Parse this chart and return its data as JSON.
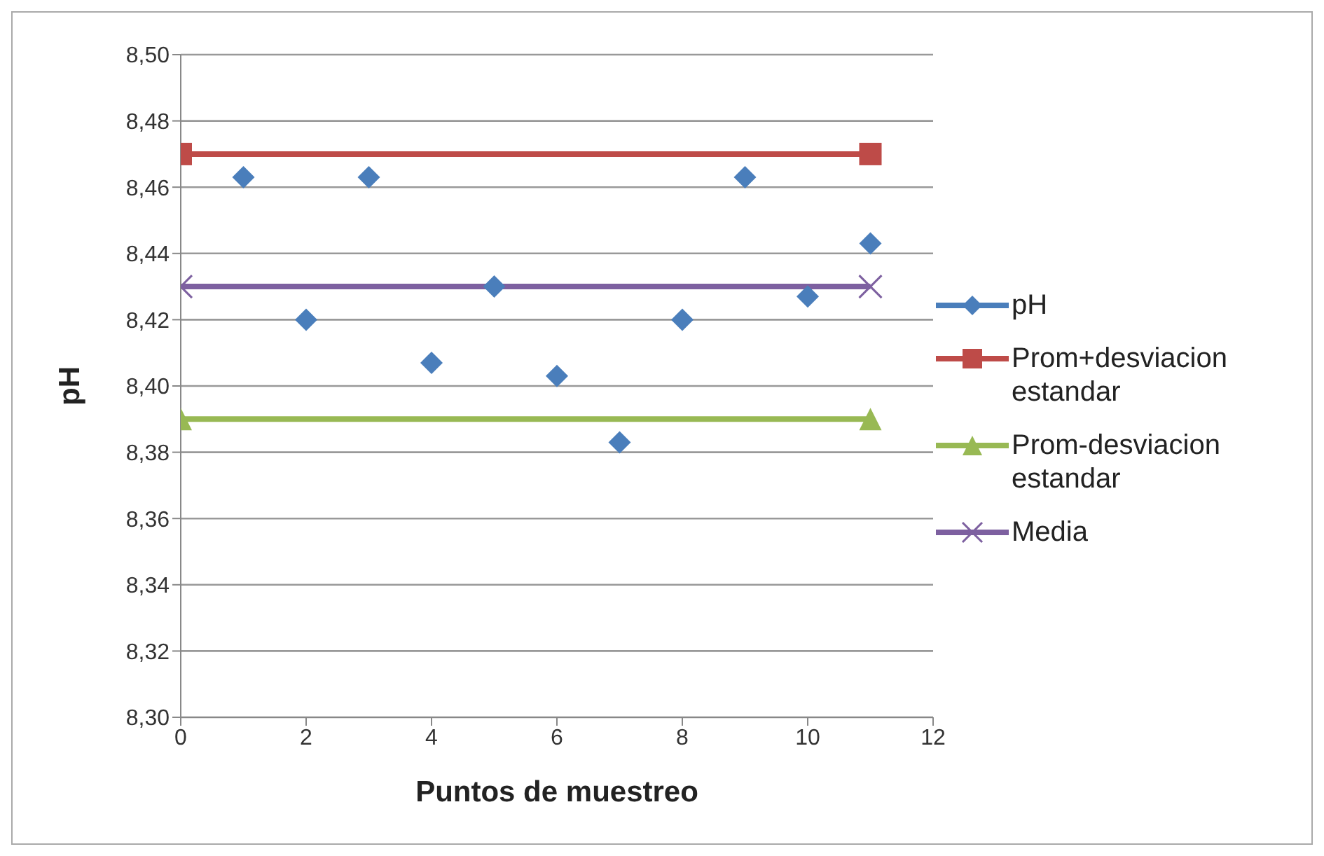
{
  "chart_data": {
    "type": "line",
    "xlabel": "Puntos de muestreo",
    "ylabel": "pH",
    "xlim": [
      0,
      12
    ],
    "xticks": [
      0,
      2,
      4,
      6,
      8,
      10,
      12
    ],
    "ylim": [
      8.3,
      8.5
    ],
    "yticks": [
      {
        "value": 8.3,
        "label": "8,30"
      },
      {
        "value": 8.32,
        "label": "8,32"
      },
      {
        "value": 8.34,
        "label": "8,34"
      },
      {
        "value": 8.36,
        "label": "8,36"
      },
      {
        "value": 8.38,
        "label": "8,38"
      },
      {
        "value": 8.4,
        "label": "8,40"
      },
      {
        "value": 8.42,
        "label": "8,42"
      },
      {
        "value": 8.44,
        "label": "8,44"
      },
      {
        "value": 8.46,
        "label": "8,46"
      },
      {
        "value": 8.48,
        "label": "8,48"
      },
      {
        "value": 8.5,
        "label": "8,50"
      }
    ],
    "grid": "y",
    "legend": "right",
    "series": [
      {
        "name": "pH",
        "type": "scatter",
        "marker": "diamond",
        "color": "#4a7ebb",
        "x": [
          1,
          2,
          3,
          4,
          5,
          6,
          7,
          8,
          9,
          10,
          11
        ],
        "values": [
          8.463,
          8.42,
          8.463,
          8.407,
          8.43,
          8.403,
          8.383,
          8.42,
          8.463,
          8.427,
          8.443
        ]
      },
      {
        "name": "Prom+desviacion estandar",
        "marker": "square",
        "color": "#be4b48",
        "x": [
          0,
          11
        ],
        "values": [
          8.47,
          8.47
        ]
      },
      {
        "name": "Prom-desviacion estandar",
        "marker": "triangle",
        "color": "#98b954",
        "x": [
          0,
          11
        ],
        "values": [
          8.39,
          8.39
        ]
      },
      {
        "name": "Media",
        "marker": "cross",
        "color": "#7d60a0",
        "x": [
          0,
          11
        ],
        "values": [
          8.43,
          8.43
        ]
      }
    ]
  }
}
